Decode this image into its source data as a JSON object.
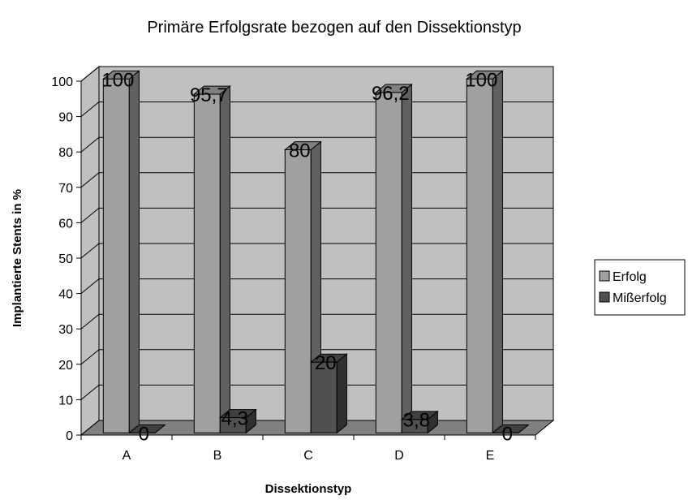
{
  "chart_data": {
    "type": "bar3d",
    "title": "Primäre Erfolgsrate bezogen auf den Dissektionstyp",
    "x_label": "Dissektionstyp",
    "y_label": "Implantierte Stents in %",
    "categories": [
      "A",
      "B",
      "C",
      "D",
      "E"
    ],
    "series": [
      {
        "name": "Erfolg",
        "color": "#a0a0a0",
        "values": [
          100,
          95.7,
          80,
          96.2,
          100
        ],
        "value_labels": [
          "100",
          "95,7",
          "80",
          "96,2",
          "100"
        ]
      },
      {
        "name": "Mißerfolg",
        "color": "#505050",
        "values": [
          0,
          4.3,
          20,
          3.8,
          0
        ],
        "value_labels": [
          "0",
          "4,3",
          "20",
          "3,8",
          "0"
        ]
      }
    ],
    "ylim": [
      0,
      100
    ],
    "yticks": [
      0,
      10,
      20,
      30,
      40,
      50,
      60,
      70,
      80,
      90,
      100
    ],
    "grid": true,
    "legend": "right"
  }
}
